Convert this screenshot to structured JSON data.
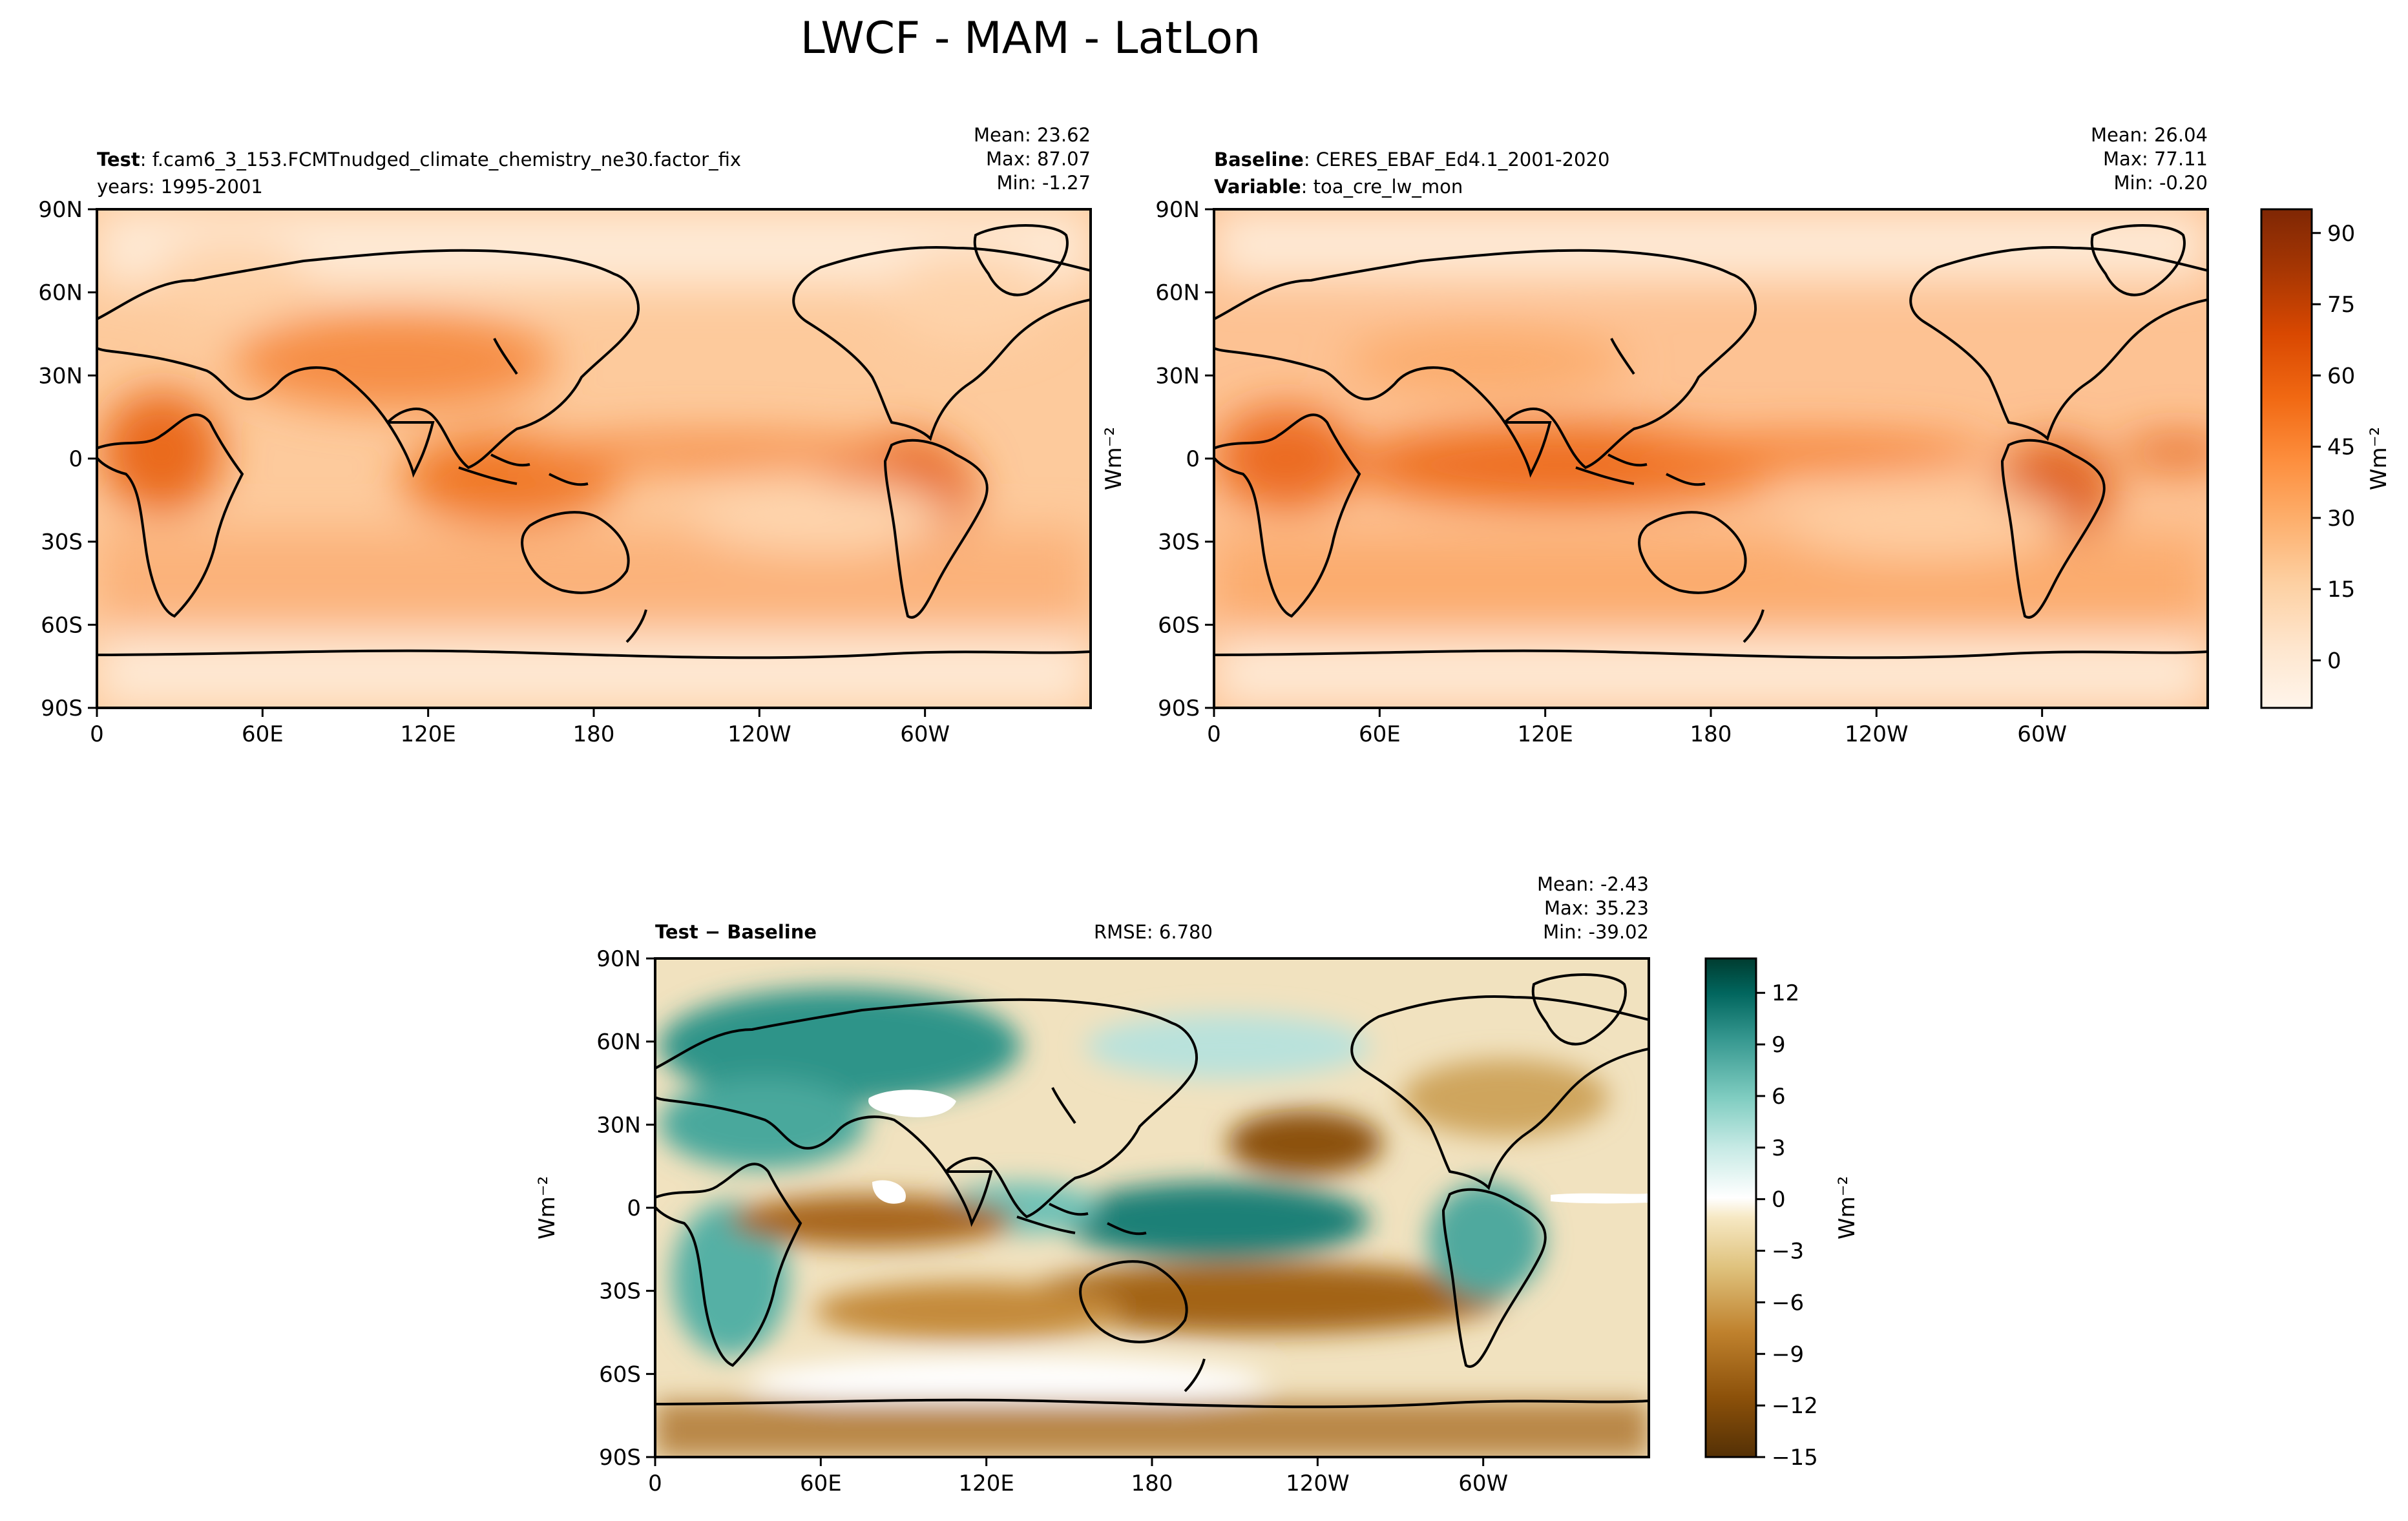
{
  "figure": {
    "title": "LWCF - MAM - LatLon"
  },
  "panels": [
    {
      "id": "test",
      "header_lines": [
        {
          "bold": "Test",
          "rest": ": f.cam6_3_153.FCMTnudged_climate_chemistry_ne30.factor_fix"
        },
        {
          "bold": "",
          "rest": "years: 1995-2001"
        }
      ],
      "stats": [
        "Mean: 23.62",
        "Max: 87.07",
        "Min: -1.27"
      ],
      "rmse": ""
    },
    {
      "id": "baseline",
      "header_lines": [
        {
          "bold": "Baseline",
          "rest": ": CERES_EBAF_Ed4.1_2001-2020"
        },
        {
          "bold": "Variable",
          "rest": ": toa_cre_lw_mon"
        }
      ],
      "stats": [
        "Mean: 26.04",
        "Max: 77.11",
        "Min: -0.20"
      ],
      "rmse": ""
    },
    {
      "id": "diff",
      "header_lines": [
        {
          "bold": "Test − Baseline",
          "rest": ""
        }
      ],
      "stats": [
        "Mean: -2.43",
        "Max: 35.23",
        "Min: -39.02"
      ],
      "rmse": "RMSE: 6.780"
    }
  ],
  "axes": {
    "lon_ticks": [
      "0",
      "60E",
      "120E",
      "180",
      "120W",
      "60W"
    ],
    "lat_ticks": [
      "90N",
      "60N",
      "30N",
      "0",
      "30S",
      "60S",
      "90S"
    ],
    "ylabel": "Wm⁻²"
  },
  "colorbars": [
    {
      "id": "abs",
      "label": "Wm⁻²",
      "vmin": -10,
      "vmax": 95,
      "ticks": [
        "90",
        "75",
        "60",
        "45",
        "30",
        "15",
        "0"
      ],
      "tick_values": [
        90,
        75,
        60,
        45,
        30,
        15,
        0
      ],
      "colors": [
        "#fff5eb",
        "#fee6ce",
        "#fdd0a2",
        "#fdae6b",
        "#fd8d3c",
        "#f16913",
        "#d94801",
        "#a63603",
        "#7f2704"
      ]
    },
    {
      "id": "diff",
      "label": "Wm⁻²",
      "vmin": -15,
      "vmax": 14,
      "ticks": [
        "12",
        "9",
        "6",
        "3",
        "0",
        "−3",
        "−6",
        "−9",
        "−12",
        "−15"
      ],
      "tick_values": [
        12,
        9,
        6,
        3,
        0,
        -3,
        -6,
        -9,
        -12,
        -15
      ],
      "colors": [
        "#543005",
        "#8c510a",
        "#bf812d",
        "#dfc27d",
        "#f6e8c3",
        "#ffffff",
        "#c7eae5",
        "#80cdc1",
        "#35978f",
        "#01665e",
        "#003c30"
      ]
    }
  ],
  "palette": {
    "map_base": "#fdc695",
    "coast": "#000000"
  }
}
